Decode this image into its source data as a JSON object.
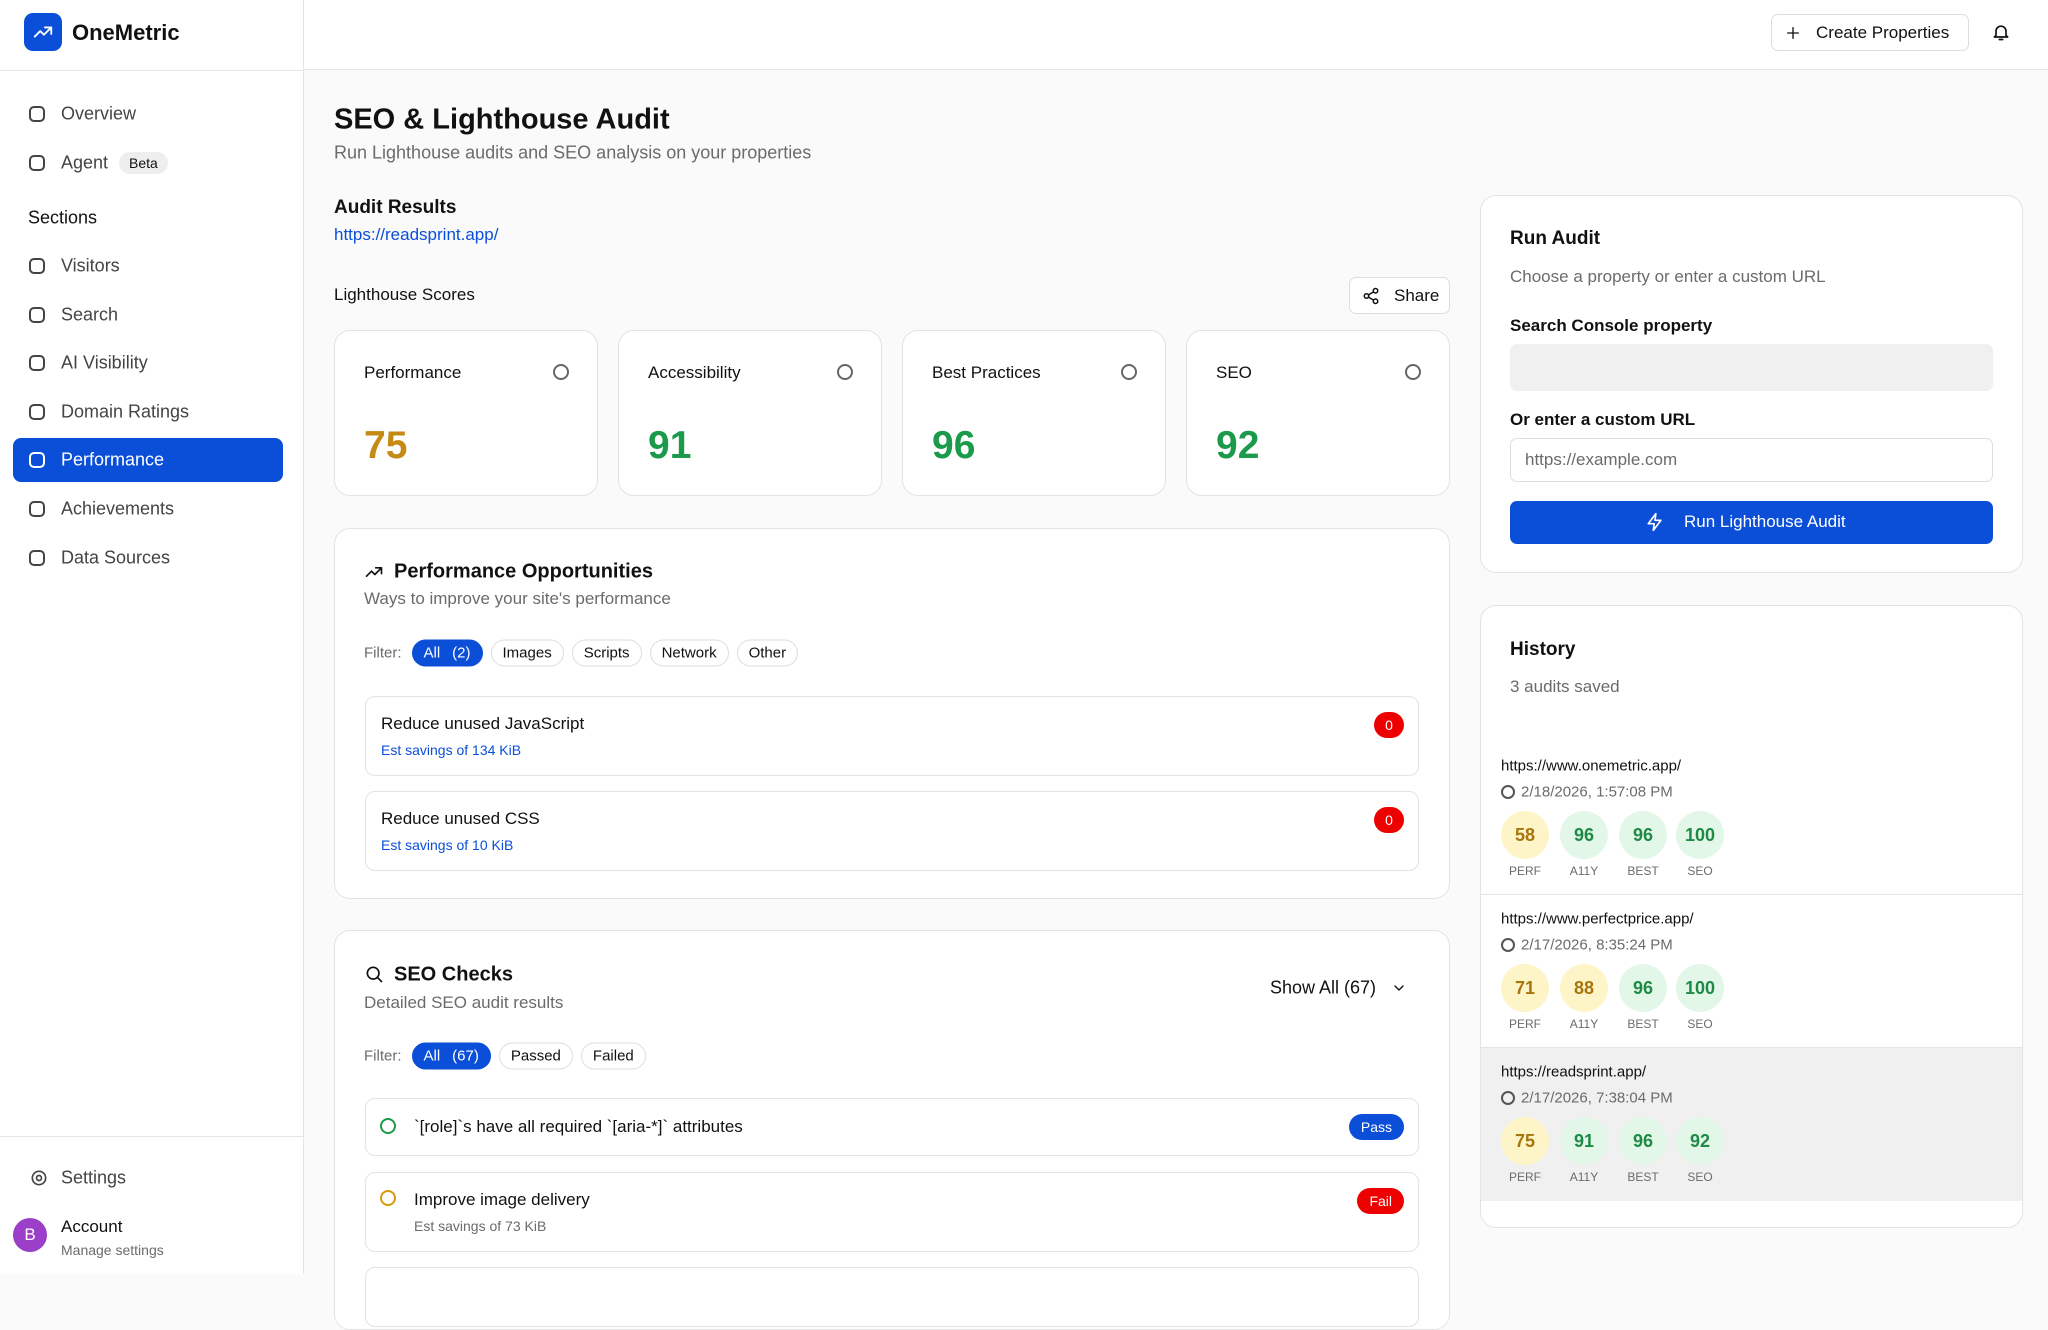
{
  "brand": "OneMetric",
  "topbar": {
    "create": "Create Properties"
  },
  "nav": {
    "items": [
      {
        "label": "Overview"
      },
      {
        "label": "Agent",
        "badge": "Beta"
      }
    ],
    "sections_label": "Sections",
    "section_items": [
      {
        "label": "Visitors"
      },
      {
        "label": "Search"
      },
      {
        "label": "AI Visibility"
      },
      {
        "label": "Domain Ratings"
      },
      {
        "label": "Performance",
        "active": true
      },
      {
        "label": "Achievements"
      },
      {
        "label": "Data Sources"
      }
    ],
    "settings": "Settings",
    "account": {
      "initial": "B",
      "name": "Account",
      "sub": "Manage settings"
    }
  },
  "page": {
    "title": "SEO & Lighthouse Audit",
    "subtitle": "Run Lighthouse audits and SEO analysis on your properties"
  },
  "audit": {
    "heading": "Audit Results",
    "url": "https://readsprint.app/",
    "scores_label": "Lighthouse Scores",
    "share": "Share",
    "scores": [
      {
        "label": "Performance",
        "value": 75
      },
      {
        "label": "Accessibility",
        "value": 91
      },
      {
        "label": "Best Practices",
        "value": 96
      },
      {
        "label": "SEO",
        "value": 92
      }
    ]
  },
  "opportunities": {
    "title": "Performance Opportunities",
    "subtitle": "Ways to improve your site's performance",
    "filter_label": "Filter:",
    "filters": [
      {
        "label": "All",
        "count": "(2)"
      },
      {
        "label": "Images"
      },
      {
        "label": "Scripts"
      },
      {
        "label": "Network"
      },
      {
        "label": "Other"
      }
    ],
    "items": [
      {
        "title": "Reduce unused JavaScript",
        "detail": "Est savings of 134 KiB",
        "badge": 0
      },
      {
        "title": "Reduce unused CSS",
        "detail": "Est savings of 10 KiB",
        "badge": 0
      }
    ]
  },
  "seo": {
    "title": "SEO Checks",
    "subtitle": "Detailed SEO audit results",
    "show_all": "Show All (67)",
    "filter_label": "Filter:",
    "filters": [
      {
        "label": "All",
        "count": "(67)"
      },
      {
        "label": "Passed"
      },
      {
        "label": "Failed"
      }
    ],
    "items": [
      {
        "title": "`[role]`s have all required `[aria-*]` attributes",
        "status": "Pass"
      },
      {
        "title": "Improve image delivery",
        "detail": "Est savings of 73 KiB",
        "status": "Fail"
      }
    ]
  },
  "run": {
    "title": "Run Audit",
    "subtitle": "Choose a property or enter a custom URL",
    "property_label": "Search Console property",
    "url_label": "Or enter a custom URL",
    "placeholder": "https://example.com",
    "button": "Run Lighthouse Audit"
  },
  "history": {
    "title": "History",
    "count": "3 audits saved",
    "score_labels": [
      "PERF",
      "A11Y",
      "BEST",
      "SEO"
    ],
    "entries": [
      {
        "url": "https://www.onemetric.app/",
        "date": "2/18/2026, 1:57:08 PM",
        "scores": [
          58,
          96,
          96,
          100
        ]
      },
      {
        "url": "https://www.perfectprice.app/",
        "date": "2/17/2026, 8:35:24 PM",
        "scores": [
          71,
          88,
          96,
          100
        ]
      },
      {
        "url": "https://readsprint.app/",
        "date": "2/17/2026, 7:38:04 PM",
        "scores": [
          75,
          91,
          96,
          92
        ],
        "selected": true
      }
    ]
  }
}
